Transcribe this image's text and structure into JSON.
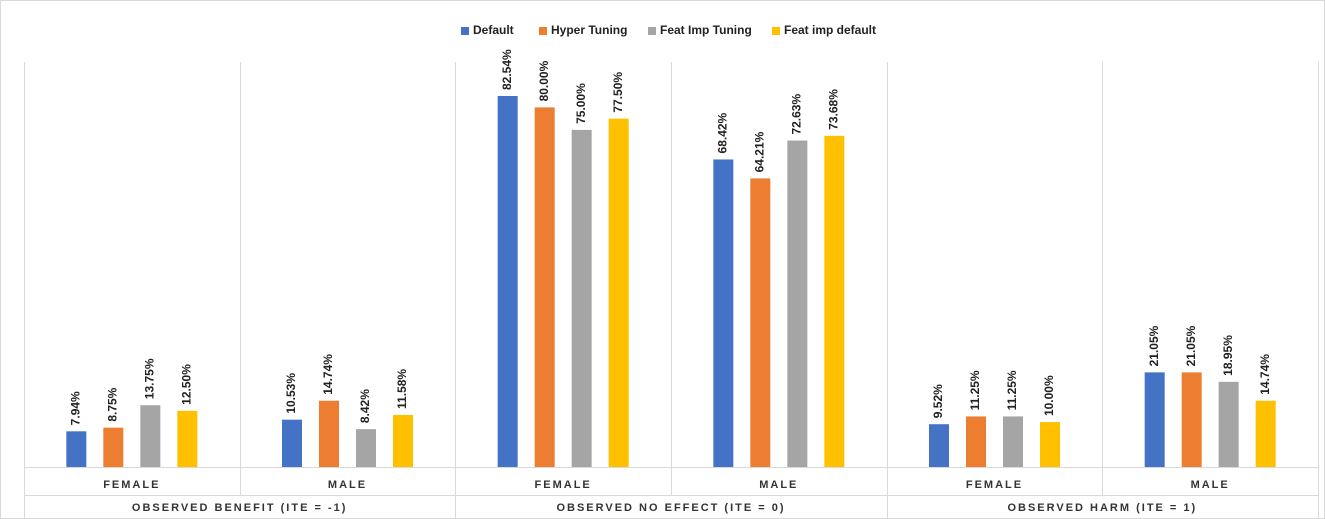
{
  "chart_data": {
    "type": "bar",
    "categories": [
      "FEMALE",
      "MALE",
      "FEMALE",
      "MALE",
      "FEMALE",
      "MALE"
    ],
    "groups": [
      "OBSERVED BENEFIT (ITE = -1)",
      "OBSERVED NO EFFECT (ITE = 0)",
      "OBSERVED HARM (ITE = 1)"
    ],
    "series": [
      {
        "name": "Default",
        "color": "#4472c4",
        "values": [
          7.94,
          10.53,
          82.54,
          68.42,
          9.52,
          21.05
        ],
        "value_labels": [
          "7.94%",
          "10.53%",
          "82.54%",
          "68.42%",
          "9.52%",
          "21.05%"
        ]
      },
      {
        "name": "Hyper Tuning",
        "color": "#ed7d31",
        "values": [
          8.75,
          14.74,
          80.0,
          64.21,
          11.25,
          21.05
        ],
        "value_labels": [
          "8.75%",
          "14.74%",
          "80.00%",
          "64.21%",
          "11.25%",
          "21.05%"
        ]
      },
      {
        "name": "Feat Imp Tuning",
        "color": "#a5a5a5",
        "values": [
          13.75,
          8.42,
          75.0,
          72.63,
          11.25,
          18.95
        ],
        "value_labels": [
          "13.75%",
          "8.42%",
          "75.00%",
          "72.63%",
          "11.25%",
          "18.95%"
        ]
      },
      {
        "name": "Feat imp default",
        "color": "#ffc000",
        "values": [
          12.5,
          11.58,
          77.5,
          73.68,
          10.0,
          14.74
        ],
        "value_labels": [
          "12.50%",
          "11.58%",
          "77.50%",
          "73.68%",
          "10.00%",
          "14.74%"
        ]
      }
    ],
    "legend": "top"
  }
}
